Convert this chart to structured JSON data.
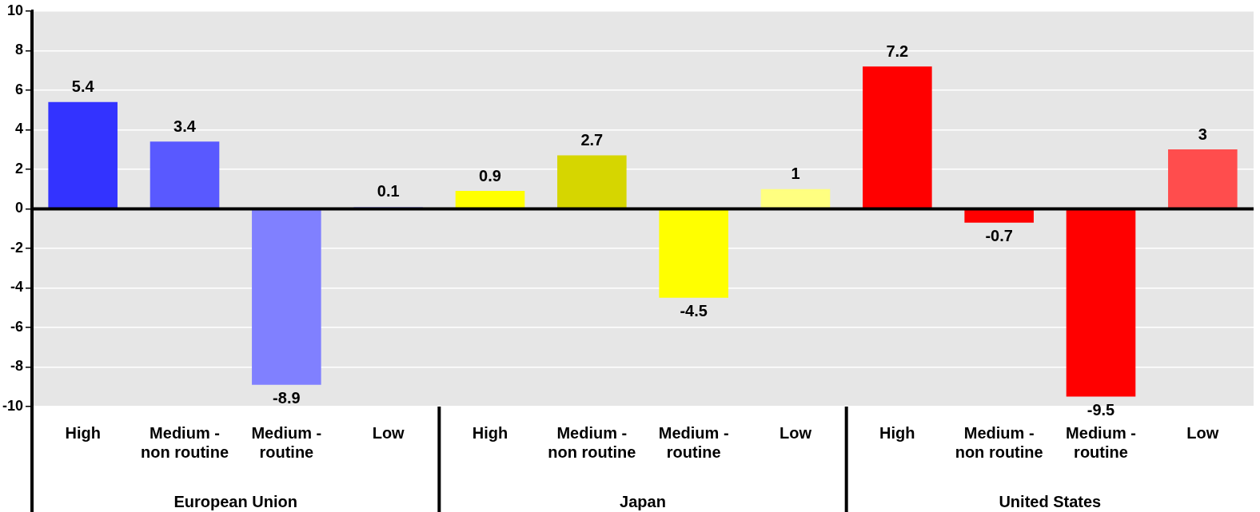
{
  "chart_data": {
    "type": "bar",
    "categories": [
      "High",
      "Medium - non routine",
      "Medium - routine",
      "Low",
      "High",
      "Medium - non routine",
      "Medium - routine",
      "Low",
      "High",
      "Medium - non routine",
      "Medium - routine",
      "Low"
    ],
    "values": [
      5.4,
      3.4,
      -8.9,
      0.1,
      0.9,
      2.7,
      -4.5,
      1,
      7.2,
      -0.7,
      -9.5,
      3
    ],
    "colors": [
      "#3333ff",
      "#5959ff",
      "#8080ff",
      "#b3b3ff",
      "#ffff00",
      "#d6d600",
      "#ffff00",
      "#ffff80",
      "#ff0000",
      "#ff0000",
      "#ff0000",
      "#ff4d4d"
    ],
    "ylim": [
      -10,
      10
    ],
    "yticks": [
      -10,
      -8,
      -6,
      -4,
      -2,
      0,
      2,
      4,
      6,
      8,
      10
    ],
    "annotations": [
      "European Union",
      "Japan",
      "United States"
    ],
    "grid": "y",
    "data_labels": true
  }
}
